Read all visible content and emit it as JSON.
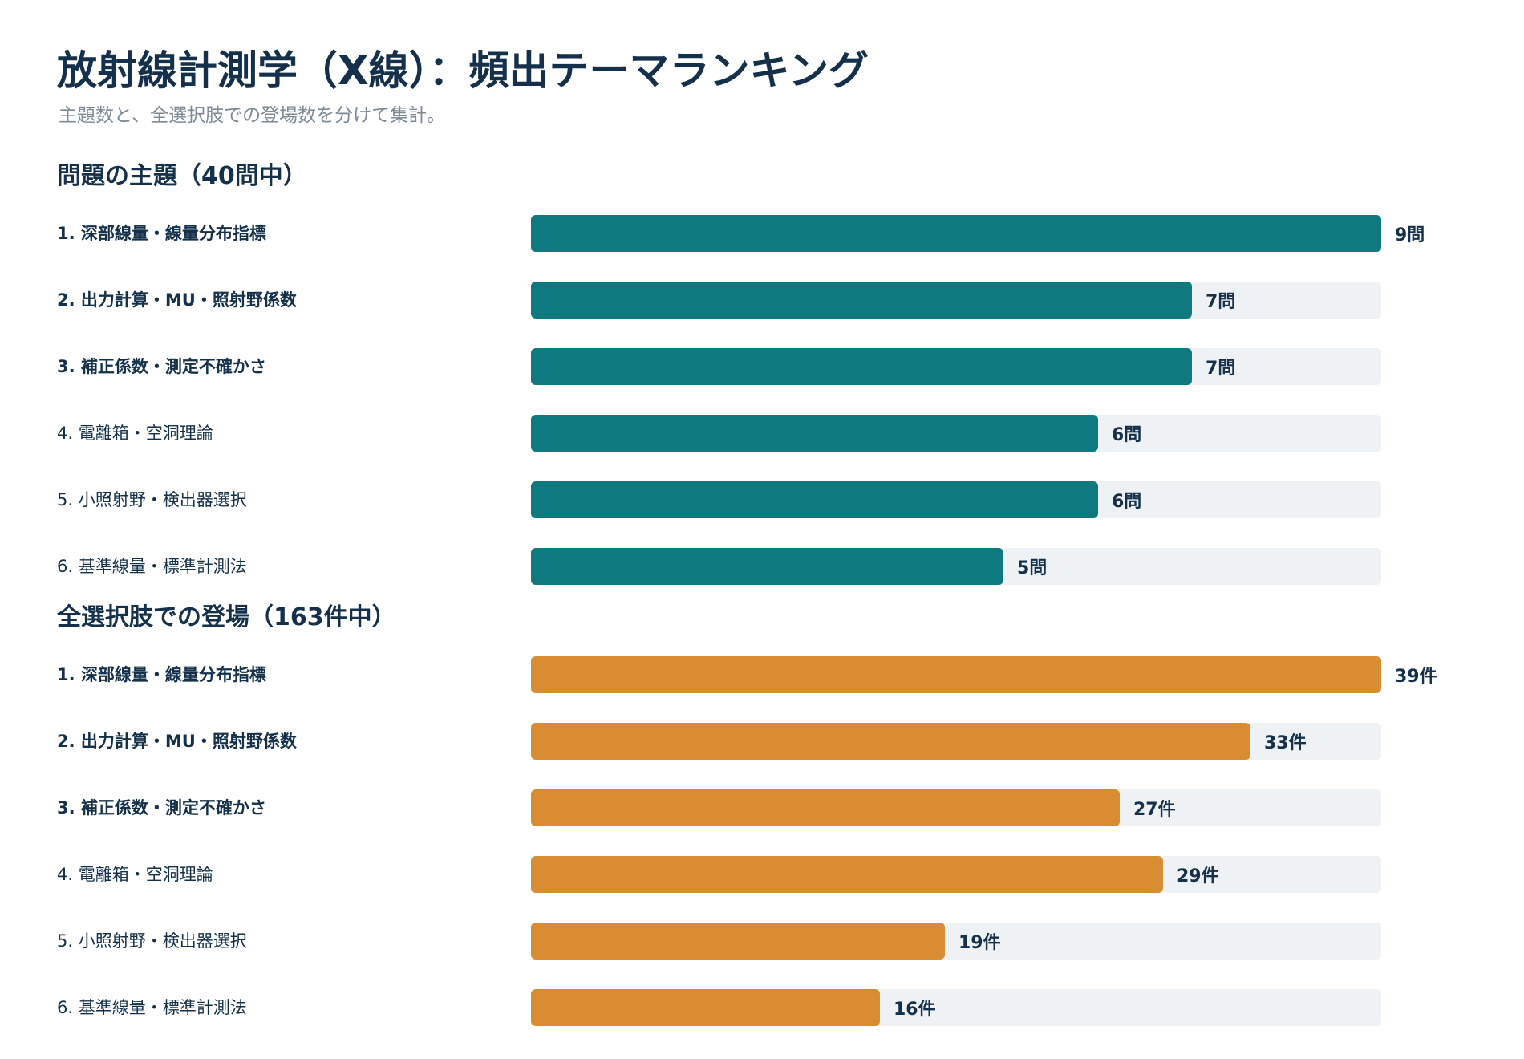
{
  "header": {
    "title": "放射線計測学（X線）：頻出テーマランキング",
    "subtitle": "主題数と、全選択肢での登場数を分けて集計。"
  },
  "colors": {
    "topic_bar": "#0e7a80",
    "choice_bar": "#d98d33",
    "track": "#eef2f5"
  },
  "chart_data": [
    {
      "type": "bar",
      "orientation": "horizontal",
      "title": "問題の主題（40問中）",
      "unit": "問",
      "xlim": [
        0,
        9
      ],
      "bar_color": "#0e7a80",
      "categories": [
        "1. 深部線量・線量分布指標",
        "2. 出力計算・MU・照射野係数",
        "3. 補正係数・測定不確かさ",
        "4. 電離箱・空洞理論",
        "5. 小照射野・検出器選択",
        "6. 基準線量・標準計測法"
      ],
      "bold": [
        true,
        true,
        true,
        false,
        false,
        false
      ],
      "values": [
        9,
        7,
        7,
        6,
        6,
        5
      ],
      "value_labels": [
        "9問",
        "7問",
        "7問",
        "6問",
        "6問",
        "5問"
      ]
    },
    {
      "type": "bar",
      "orientation": "horizontal",
      "title": "全選択肢での登場（163件中）",
      "unit": "件",
      "xlim": [
        0,
        39
      ],
      "bar_color": "#d98d33",
      "categories": [
        "1. 深部線量・線量分布指標",
        "2. 出力計算・MU・照射野係数",
        "3. 補正係数・測定不確かさ",
        "4. 電離箱・空洞理論",
        "5. 小照射野・検出器選択",
        "6. 基準線量・標準計測法"
      ],
      "bold": [
        true,
        true,
        true,
        false,
        false,
        false
      ],
      "values": [
        39,
        33,
        27,
        29,
        19,
        16
      ],
      "value_labels": [
        "39件",
        "33件",
        "27件",
        "29件",
        "19件",
        "16件"
      ]
    }
  ]
}
